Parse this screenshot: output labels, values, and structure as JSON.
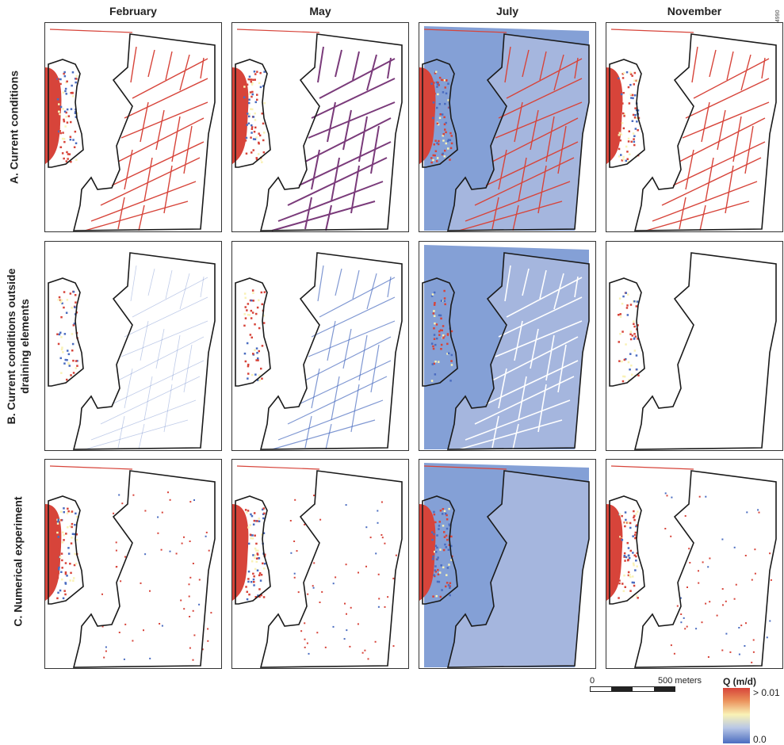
{
  "columns": [
    "February",
    "May",
    "July",
    "November"
  ],
  "rows": [
    {
      "label": "A. Current conditions"
    },
    {
      "label": "B. Current conditions outside draining elements"
    },
    {
      "label": "C. Numerical experiment"
    }
  ],
  "figure_id": "74990",
  "scale": {
    "zero": "0",
    "end": "500 meters"
  },
  "legend": {
    "title": "Q (m/d)",
    "max_label": "> 0.01",
    "min_label": "0.0"
  },
  "colors": {
    "high": "#d7443a",
    "mid": "#f9f2b6",
    "low": "#4a6cc0",
    "outline": "#1a1a1a"
  },
  "panels": [
    {
      "row": 0,
      "col": 0,
      "lagoon": true,
      "fill": false,
      "ditches": "red"
    },
    {
      "row": 0,
      "col": 1,
      "lagoon": true,
      "fill": false,
      "ditches": "redblue"
    },
    {
      "row": 0,
      "col": 2,
      "lagoon": true,
      "fill": true,
      "ditches": "red"
    },
    {
      "row": 0,
      "col": 3,
      "lagoon": true,
      "fill": false,
      "ditches": "red"
    },
    {
      "row": 1,
      "col": 0,
      "lagoon": false,
      "fill": false,
      "ditches": "faint"
    },
    {
      "row": 1,
      "col": 1,
      "lagoon": false,
      "fill": false,
      "ditches": "blueoutline"
    },
    {
      "row": 1,
      "col": 2,
      "lagoon": false,
      "fill": true,
      "ditches": "white"
    },
    {
      "row": 1,
      "col": 3,
      "lagoon": false,
      "fill": false,
      "ditches": "none"
    },
    {
      "row": 2,
      "col": 0,
      "lagoon": true,
      "fill": false,
      "ditches": "dots"
    },
    {
      "row": 2,
      "col": 1,
      "lagoon": true,
      "fill": false,
      "ditches": "dots"
    },
    {
      "row": 2,
      "col": 2,
      "lagoon": true,
      "fill": true,
      "ditches": "none"
    },
    {
      "row": 2,
      "col": 3,
      "lagoon": true,
      "fill": false,
      "ditches": "dots"
    }
  ]
}
